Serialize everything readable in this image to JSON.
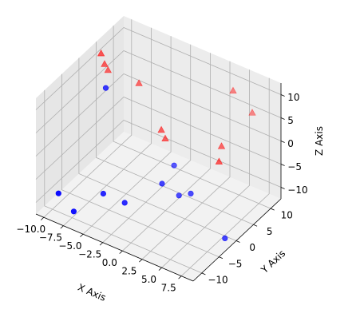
{
  "chart_data": {
    "type": "scatter",
    "projection": "3d",
    "title": "",
    "xlabel": "X Axis",
    "ylabel": "Y Axis",
    "zlabel": "Z Axis",
    "xlim": [
      -11,
      9
    ],
    "ylim": [
      -12.5,
      13
    ],
    "zlim": [
      -12.5,
      12.5
    ],
    "x_ticks": [
      -10.0,
      -7.5,
      -5.0,
      -2.5,
      0.0,
      2.5,
      5.0,
      7.5
    ],
    "x_tick_labels": [
      "−10.0",
      "−7.5",
      "−5.0",
      "−2.5",
      "0.0",
      "2.5",
      "5.0",
      "7.5"
    ],
    "y_ticks": [
      -10,
      -5,
      0,
      5,
      10
    ],
    "y_tick_labels": [
      "−10",
      "−5",
      "0",
      "5",
      "10"
    ],
    "z_ticks": [
      -10,
      -5,
      0,
      5,
      10
    ],
    "z_tick_labels": [
      "−10",
      "−5",
      "0",
      "5",
      "10"
    ],
    "grid": true,
    "series": [
      {
        "marker": "circle",
        "color": "#0000ff",
        "points": [
          {
            "x": -9.0,
            "y": -10.5,
            "z": -8.0
          },
          {
            "x": -7.5,
            "y": -9.5,
            "z": -11.5
          },
          {
            "x": -5.5,
            "y": -5.5,
            "z": -9.0
          },
          {
            "x": -3.0,
            "y": -5.0,
            "z": -9.5
          },
          {
            "x": 0.0,
            "y": -1.0,
            "z": -6.0
          },
          {
            "x": 1.5,
            "y": 0.5,
            "z": -8.5
          },
          {
            "x": 0.0,
            "y": 2.5,
            "z": -4.5
          },
          {
            "x": 3.0,
            "y": 0.5,
            "z": -7.0
          },
          {
            "x": 8.0,
            "y": -1.0,
            "z": -12.0
          },
          {
            "x": -6.5,
            "y": -2.5,
            "z": 11.0
          }
        ]
      },
      {
        "marker": "triangle",
        "color": "#ff0000",
        "points": [
          {
            "x": -9.5,
            "y": 3.0,
            "z": 12.5
          },
          {
            "x": -9.5,
            "y": 4.0,
            "z": 9.5
          },
          {
            "x": -9.5,
            "y": 5.0,
            "z": 7.5
          },
          {
            "x": -6.0,
            "y": 6.0,
            "z": 6.5
          },
          {
            "x": 4.0,
            "y": 10.5,
            "z": 9.0
          },
          {
            "x": -2.5,
            "y": 4.5,
            "z": 0.0
          },
          {
            "x": -2.0,
            "y": 4.5,
            "z": -1.5
          },
          {
            "x": 4.5,
            "y": 6.0,
            "z": 0.5
          },
          {
            "x": 5.5,
            "y": 3.0,
            "z": 0.0
          },
          {
            "x": 6.0,
            "y": 11.5,
            "z": 5.0
          }
        ]
      }
    ]
  }
}
